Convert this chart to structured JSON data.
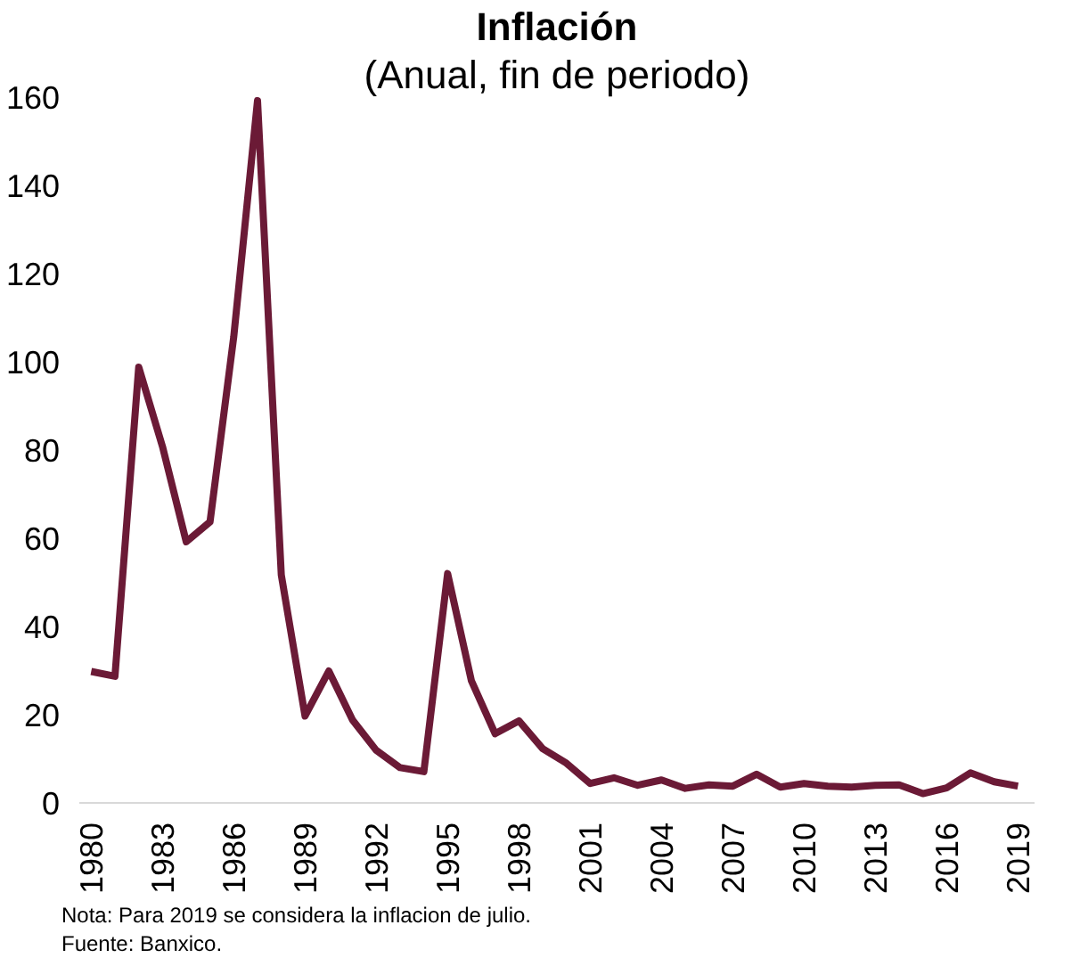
{
  "chart_data": {
    "type": "line",
    "title": "Inflación",
    "subtitle": "(Anual, fin de periodo)",
    "x": [
      1980,
      1981,
      1982,
      1983,
      1984,
      1985,
      1986,
      1987,
      1988,
      1989,
      1990,
      1991,
      1992,
      1993,
      1994,
      1995,
      1996,
      1997,
      1998,
      1999,
      2000,
      2001,
      2002,
      2003,
      2004,
      2005,
      2006,
      2007,
      2008,
      2009,
      2010,
      2011,
      2012,
      2013,
      2014,
      2015,
      2016,
      2017,
      2018,
      2019
    ],
    "series": [
      {
        "color": "#6b1a36",
        "values": [
          29.8,
          28.7,
          98.8,
          80.8,
          59.2,
          63.7,
          105.7,
          159.2,
          51.7,
          19.7,
          29.9,
          18.8,
          11.9,
          8.0,
          7.1,
          52.0,
          27.7,
          15.7,
          18.6,
          12.3,
          9.0,
          4.4,
          5.7,
          4.0,
          5.2,
          3.3,
          4.1,
          3.8,
          6.5,
          3.6,
          4.4,
          3.8,
          3.6,
          4.0,
          4.1,
          2.1,
          3.4,
          6.8,
          4.8,
          3.8
        ]
      }
    ],
    "xlim": [
      1979.5,
      2019.7
    ],
    "xticks": [
      1980,
      1983,
      1986,
      1989,
      1992,
      1995,
      1998,
      2001,
      2004,
      2007,
      2010,
      2013,
      2016,
      2019
    ],
    "ylim": [
      0,
      160
    ],
    "yticks": [
      0,
      20,
      40,
      60,
      80,
      100,
      120,
      140,
      160
    ],
    "grid": false,
    "marker": "none",
    "line_style": "solid",
    "annotations": [
      "Nota: Para 2019 se considera la inflacion de julio.",
      "Fuente: Banxico."
    ]
  }
}
